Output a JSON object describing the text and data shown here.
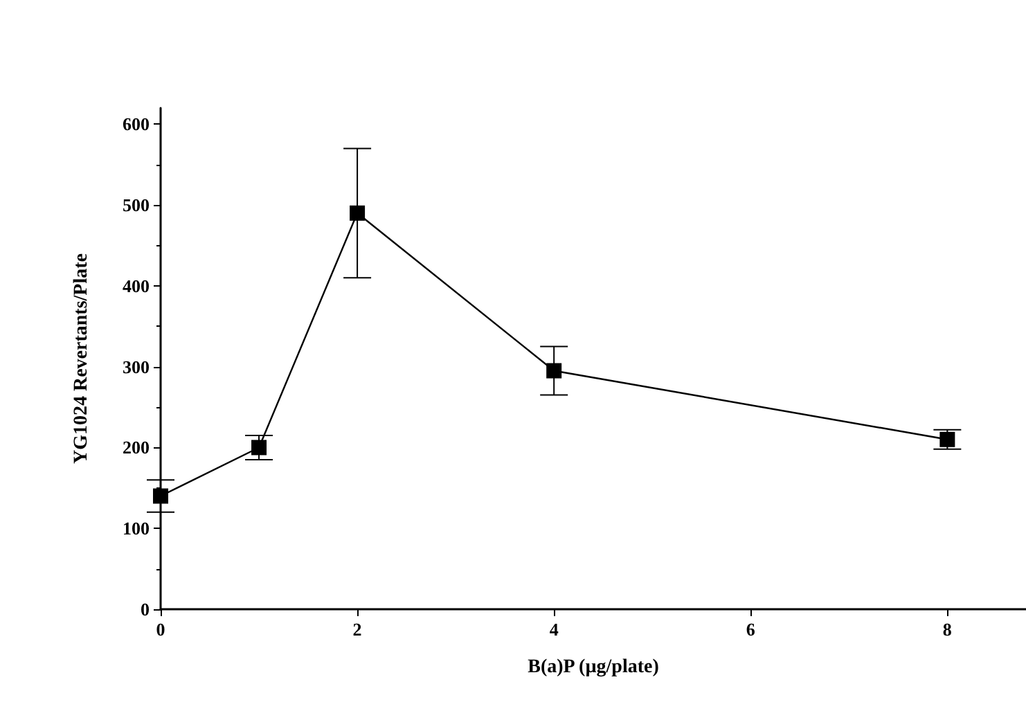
{
  "chart_data": {
    "type": "line",
    "xlabel": "B(a)P (µg/plate)",
    "ylabel": "YG1024 Revertants/Plate",
    "x": [
      0,
      1,
      2,
      4,
      8
    ],
    "series": [
      {
        "color": "#000000",
        "values": [
          140,
          200,
          490,
          295,
          210
        ],
        "errors": [
          [
            120,
            160
          ],
          [
            185,
            215
          ],
          [
            410,
            570
          ],
          [
            265,
            325
          ],
          [
            198,
            222
          ]
        ]
      }
    ],
    "xlim": [
      0,
      8.8
    ],
    "ylim": [
      0,
      620
    ],
    "xticks": [
      0,
      2,
      4,
      6,
      8
    ],
    "yticks": [
      0,
      100,
      200,
      300,
      400,
      500,
      600
    ],
    "marker": "square",
    "line_style": "solid",
    "grid": false
  }
}
